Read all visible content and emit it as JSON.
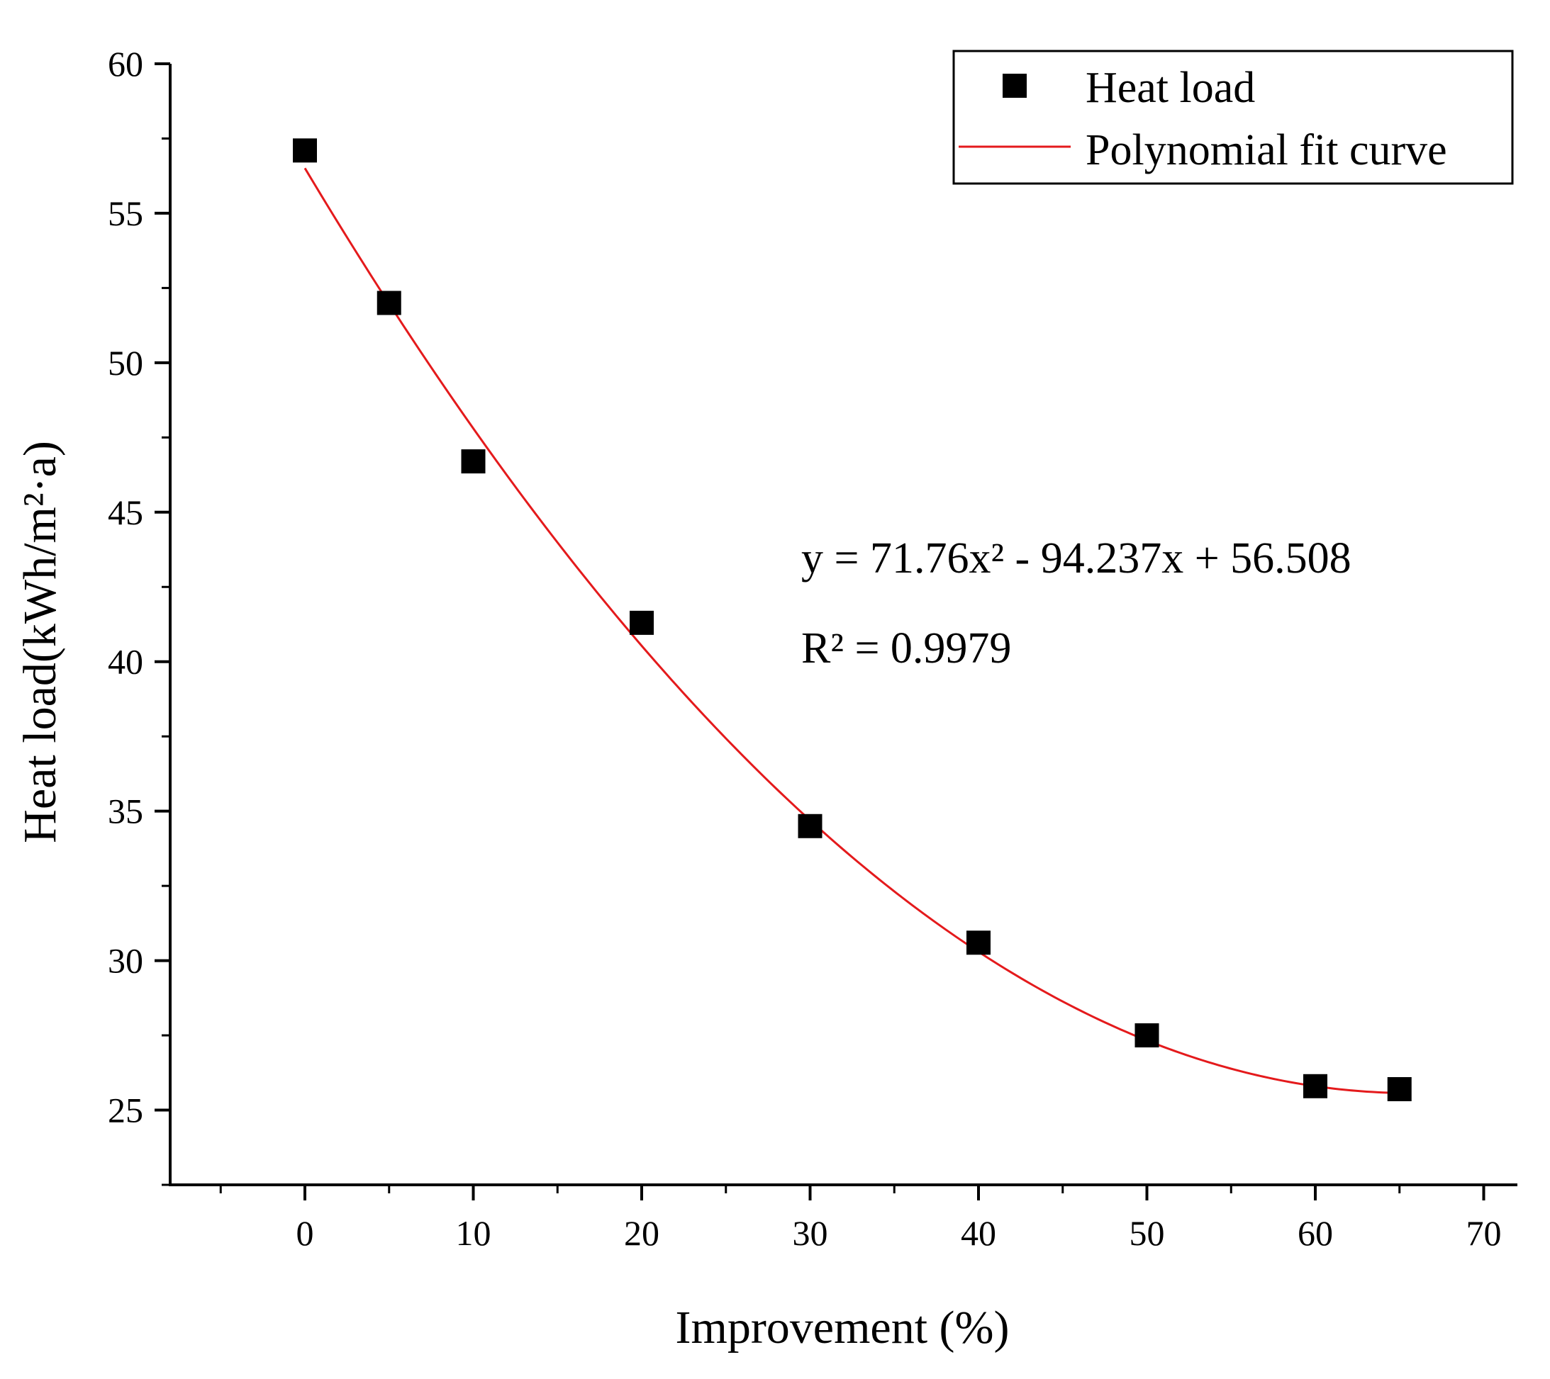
{
  "chart_data": {
    "type": "scatter",
    "title": "",
    "xlabel": "Improvement (%)",
    "ylabel": "Heat load(kWh/m²·a)",
    "xlim": [
      -8,
      72
    ],
    "ylim": [
      22.5,
      60
    ],
    "xticks": [
      0,
      10,
      20,
      30,
      40,
      50,
      60,
      70
    ],
    "yticks": [
      25,
      30,
      35,
      40,
      45,
      50,
      55,
      60
    ],
    "grid": false,
    "legend_position": "top-right",
    "series": [
      {
        "name": "Heat load",
        "kind": "scatter",
        "marker": "square",
        "color": "#000000",
        "x": [
          0,
          5,
          10,
          20,
          30,
          40,
          50,
          60,
          65
        ],
        "y": [
          57.1,
          52.0,
          46.7,
          41.3,
          34.5,
          30.6,
          27.5,
          25.8,
          25.7
        ]
      },
      {
        "name": "Polynomial fit curve",
        "kind": "line",
        "color": "#e41a1c",
        "equation_coefficients": {
          "a": 71.76,
          "b": -94.237,
          "c": 56.508,
          "x_scale": 0.01
        },
        "x_range": [
          0,
          65
        ]
      }
    ],
    "annotations": {
      "equation": "y = 71.76x² - 94.237x + 56.508",
      "r_squared": "R² = 0.9979"
    }
  }
}
